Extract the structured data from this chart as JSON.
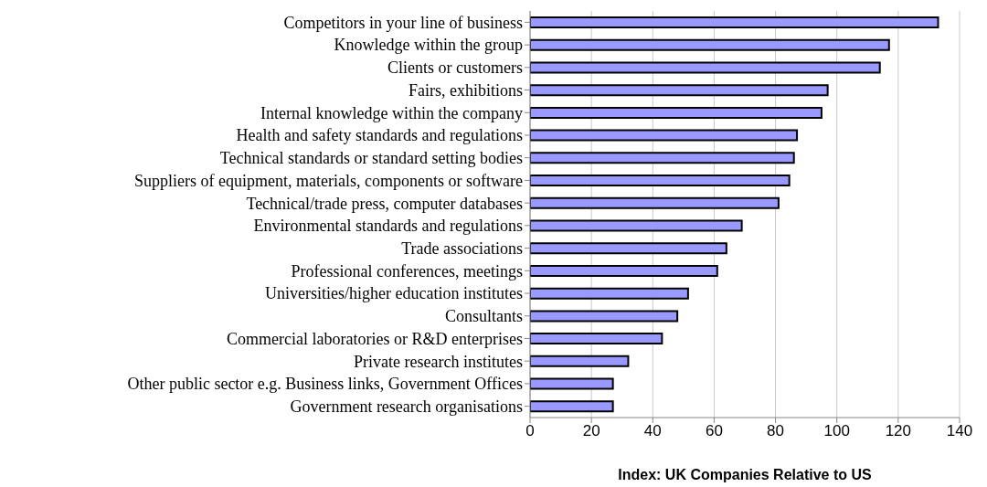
{
  "chart_data": {
    "type": "bar",
    "orientation": "horizontal",
    "xlabel": "Index: UK Companies Relative to US",
    "categories": [
      "Competitors in your line of business",
      "Knowledge within the group",
      "Clients or customers",
      "Fairs, exhibitions",
      "Internal knowledge within the company",
      "Health and safety standards and regulations",
      "Technical standards or standard setting bodies",
      "Suppliers of equipment, materials, components or software",
      "Technical/trade press, computer databases",
      "Environmental standards and regulations",
      "Trade associations",
      "Professional conferences, meetings",
      "Universities/higher education institutes",
      "Consultants",
      "Commercial laboratories or R&D enterprises",
      "Private research institutes",
      "Other public sector e.g. Business links, Government Offices",
      "Government research organisations"
    ],
    "values": [
      133,
      117,
      114,
      97,
      95,
      87,
      86,
      84.5,
      81,
      69,
      64,
      61,
      51.5,
      48,
      43,
      32,
      27,
      27
    ],
    "color": "#9999ff",
    "xlim": [
      0,
      140
    ],
    "xticks": [
      0,
      20,
      40,
      60,
      80,
      100,
      120,
      140
    ],
    "grid": "x"
  }
}
